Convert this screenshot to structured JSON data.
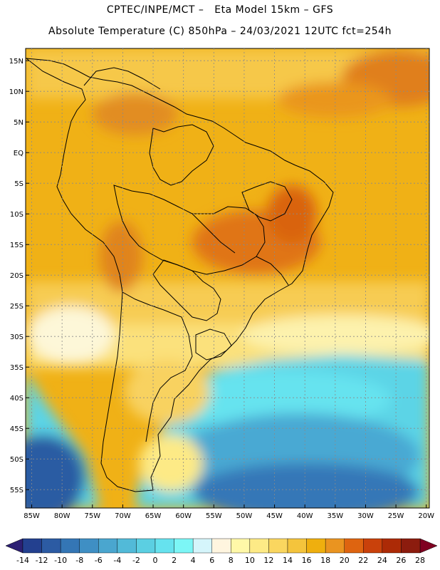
{
  "header": {
    "line1": "CPTEC/INPE/MCT –   Eta Model 15km – GFS",
    "line2": "Absolute Temperature (C) 850hPa – 24/03/2021 12UTC fct=254h"
  },
  "map": {
    "region": "South America",
    "lat_labels": [
      {
        "text": "15N",
        "lat": 15
      },
      {
        "text": "10N",
        "lat": 10
      },
      {
        "text": "5N",
        "lat": 5
      },
      {
        "text": "EQ",
        "lat": 0
      },
      {
        "text": "5S",
        "lat": -5
      },
      {
        "text": "10S",
        "lat": -10
      },
      {
        "text": "15S",
        "lat": -15
      },
      {
        "text": "20S",
        "lat": -20
      },
      {
        "text": "25S",
        "lat": -25
      },
      {
        "text": "30S",
        "lat": -30
      },
      {
        "text": "35S",
        "lat": -35
      },
      {
        "text": "40S",
        "lat": -40
      },
      {
        "text": "45S",
        "lat": -45
      },
      {
        "text": "50S",
        "lat": -50
      },
      {
        "text": "55S",
        "lat": -55
      }
    ],
    "lon_labels": [
      {
        "text": "85W",
        "lon": -85
      },
      {
        "text": "80W",
        "lon": -80
      },
      {
        "text": "75W",
        "lon": -75
      },
      {
        "text": "70W",
        "lon": -70
      },
      {
        "text": "65W",
        "lon": -65
      },
      {
        "text": "60W",
        "lon": -60
      },
      {
        "text": "55W",
        "lon": -55
      },
      {
        "text": "50W",
        "lon": -50
      },
      {
        "text": "45W",
        "lon": -45
      },
      {
        "text": "40W",
        "lon": -40
      },
      {
        "text": "35W",
        "lon": -35
      },
      {
        "text": "30W",
        "lon": -30
      },
      {
        "text": "25W",
        "lon": -25
      },
      {
        "text": "20W",
        "lon": -20
      }
    ],
    "lat_range": [
      -58,
      17
    ],
    "lon_range": [
      -86,
      -19.5
    ]
  },
  "colorbar": {
    "colors": [
      "#23408f",
      "#2c5ba3",
      "#3476b5",
      "#3f8fc4",
      "#4aa6cf",
      "#52bad8",
      "#5bcfe2",
      "#66e2ee",
      "#7cf6f6",
      "#d5f5fb",
      "#fff5df",
      "#fff8a8",
      "#fdea86",
      "#fad65f",
      "#f4c43c",
      "#efaf0e",
      "#ea9420",
      "#de6410",
      "#c9410b",
      "#ac2a06",
      "#8c1c0e"
    ],
    "low_end_color": "#2c1f73",
    "high_end_color": "#800021",
    "labels": [
      "-14",
      "-12",
      "-10",
      "-8",
      "-6",
      "-4",
      "-2",
      "0",
      "2",
      "4",
      "6",
      "8",
      "10",
      "12",
      "14",
      "16",
      "18",
      "20",
      "22",
      "24",
      "26",
      "28"
    ]
  }
}
